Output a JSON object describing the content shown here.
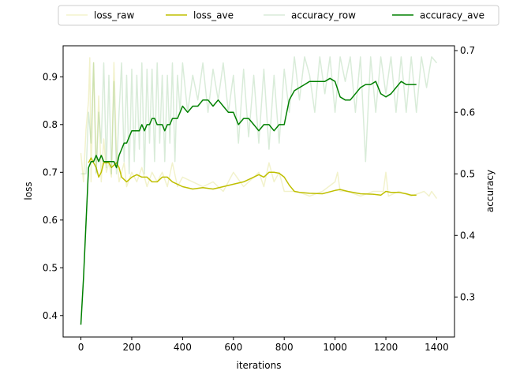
{
  "chart_data": {
    "type": "line",
    "title": "",
    "xlabel": "iterations",
    "ylabel_left": "loss",
    "ylabel_right": "accuracy",
    "xlim": [
      -70,
      1470
    ],
    "ylim_left": [
      0.355,
      0.965
    ],
    "ylim_right": [
      0.235,
      0.708
    ],
    "x_ticks": [
      0,
      200,
      400,
      600,
      800,
      1000,
      1200,
      1400
    ],
    "x_tick_labels": [
      "0",
      "200",
      "400",
      "600",
      "800",
      "1000",
      "1200",
      "1400"
    ],
    "y_left_ticks": [
      0.4,
      0.5,
      0.6,
      0.7,
      0.8,
      0.9
    ],
    "y_left_tick_labels": [
      "0.4",
      "0.5",
      "0.6",
      "0.7",
      "0.8",
      "0.9"
    ],
    "y_right_ticks": [
      0.3,
      0.4,
      0.5,
      0.6,
      0.7
    ],
    "y_right_tick_labels": [
      "0.3",
      "0.4",
      "0.5",
      "0.6",
      "0.7"
    ],
    "grid": false,
    "legend_position": "top-center-outside",
    "legend": [
      "loss_raw",
      "loss_ave",
      "accuracy_row",
      "accuracy_ave"
    ],
    "series": [
      {
        "name": "loss_raw",
        "axis": "left",
        "color": "#bfbf00",
        "opacity": 0.2,
        "x": [
          0,
          10,
          20,
          30,
          35,
          40,
          50,
          60,
          70,
          80,
          90,
          100,
          110,
          120,
          130,
          140,
          150,
          160,
          170,
          180,
          200,
          220,
          240,
          260,
          280,
          300,
          320,
          340,
          360,
          380,
          400,
          440,
          480,
          520,
          560,
          600,
          640,
          680,
          700,
          720,
          740,
          760,
          780,
          800,
          850,
          900,
          950,
          1000,
          1010,
          1020,
          1050,
          1100,
          1150,
          1190,
          1200,
          1210,
          1250,
          1300,
          1350,
          1370,
          1380,
          1400
        ],
        "values": [
          0.74,
          0.68,
          0.79,
          0.85,
          0.94,
          0.68,
          0.93,
          0.7,
          0.86,
          0.68,
          0.77,
          0.7,
          0.72,
          0.69,
          0.93,
          0.74,
          0.68,
          0.7,
          0.72,
          0.67,
          0.7,
          0.68,
          0.71,
          0.67,
          0.7,
          0.68,
          0.7,
          0.67,
          0.72,
          0.67,
          0.69,
          0.68,
          0.67,
          0.68,
          0.66,
          0.7,
          0.67,
          0.69,
          0.7,
          0.67,
          0.72,
          0.68,
          0.7,
          0.66,
          0.66,
          0.65,
          0.66,
          0.68,
          0.7,
          0.66,
          0.66,
          0.65,
          0.66,
          0.66,
          0.7,
          0.65,
          0.66,
          0.65,
          0.66,
          0.65,
          0.66,
          0.645
        ]
      },
      {
        "name": "loss_ave",
        "axis": "left",
        "color": "#bfbf00",
        "opacity": 1,
        "x": [
          30,
          40,
          50,
          60,
          70,
          80,
          90,
          100,
          110,
          120,
          140,
          150,
          160,
          180,
          200,
          220,
          240,
          260,
          280,
          300,
          320,
          340,
          360,
          380,
          400,
          440,
          480,
          520,
          560,
          600,
          640,
          680,
          700,
          720,
          740,
          760,
          780,
          800,
          820,
          840,
          860,
          900,
          950,
          1000,
          1020,
          1050,
          1100,
          1150,
          1180,
          1200,
          1220,
          1250,
          1280,
          1300,
          1320
        ],
        "values": [
          0.72,
          0.73,
          0.72,
          0.71,
          0.69,
          0.7,
          0.72,
          0.72,
          0.72,
          0.71,
          0.72,
          0.71,
          0.69,
          0.68,
          0.69,
          0.695,
          0.69,
          0.69,
          0.68,
          0.68,
          0.69,
          0.69,
          0.68,
          0.675,
          0.67,
          0.665,
          0.668,
          0.665,
          0.67,
          0.675,
          0.68,
          0.69,
          0.695,
          0.69,
          0.7,
          0.7,
          0.698,
          0.69,
          0.673,
          0.66,
          0.658,
          0.656,
          0.655,
          0.662,
          0.664,
          0.66,
          0.655,
          0.654,
          0.652,
          0.66,
          0.658,
          0.658,
          0.655,
          0.652,
          0.652
        ]
      },
      {
        "name": "accuracy_row",
        "axis": "right",
        "color": "#008000",
        "opacity": 0.15,
        "x": [
          0,
          10,
          20,
          30,
          40,
          50,
          60,
          70,
          80,
          90,
          100,
          110,
          120,
          130,
          140,
          150,
          160,
          170,
          180,
          190,
          200,
          210,
          220,
          230,
          240,
          250,
          260,
          270,
          280,
          290,
          300,
          310,
          320,
          330,
          340,
          350,
          360,
          370,
          380,
          390,
          400,
          420,
          440,
          460,
          480,
          500,
          520,
          540,
          560,
          580,
          600,
          620,
          640,
          660,
          680,
          700,
          720,
          740,
          760,
          780,
          800,
          820,
          840,
          860,
          880,
          900,
          920,
          940,
          960,
          980,
          1000,
          1020,
          1040,
          1060,
          1080,
          1100,
          1120,
          1140,
          1160,
          1180,
          1200,
          1220,
          1240,
          1260,
          1280,
          1300,
          1320,
          1340,
          1360,
          1380,
          1400
        ],
        "values": [
          0.5,
          0.5,
          0.5,
          0.6,
          0.55,
          0.68,
          0.5,
          0.6,
          0.55,
          0.68,
          0.51,
          0.66,
          0.5,
          0.65,
          0.5,
          0.6,
          0.68,
          0.52,
          0.66,
          0.5,
          0.67,
          0.52,
          0.66,
          0.54,
          0.68,
          0.5,
          0.67,
          0.55,
          0.67,
          0.52,
          0.68,
          0.55,
          0.66,
          0.52,
          0.66,
          0.55,
          0.68,
          0.52,
          0.66,
          0.6,
          0.68,
          0.6,
          0.66,
          0.62,
          0.68,
          0.6,
          0.67,
          0.62,
          0.68,
          0.6,
          0.66,
          0.55,
          0.67,
          0.56,
          0.66,
          0.55,
          0.67,
          0.54,
          0.66,
          0.55,
          0.67,
          0.6,
          0.69,
          0.62,
          0.69,
          0.66,
          0.6,
          0.69,
          0.63,
          0.69,
          0.6,
          0.69,
          0.65,
          0.69,
          0.6,
          0.69,
          0.52,
          0.69,
          0.6,
          0.69,
          0.63,
          0.69,
          0.6,
          0.69,
          0.6,
          0.69,
          0.6,
          0.69,
          0.64,
          0.69,
          0.68
        ]
      },
      {
        "name": "accuracy_ave",
        "axis": "right",
        "color": "#008000",
        "opacity": 1,
        "x": [
          0,
          10,
          20,
          30,
          40,
          50,
          60,
          70,
          80,
          90,
          100,
          110,
          120,
          130,
          140,
          150,
          160,
          170,
          180,
          190,
          200,
          210,
          220,
          230,
          240,
          250,
          260,
          270,
          280,
          290,
          300,
          310,
          320,
          330,
          340,
          350,
          360,
          370,
          380,
          390,
          400,
          420,
          440,
          460,
          480,
          500,
          520,
          540,
          560,
          580,
          600,
          620,
          640,
          660,
          680,
          700,
          720,
          740,
          760,
          780,
          800,
          820,
          840,
          860,
          880,
          900,
          920,
          940,
          960,
          980,
          1000,
          1020,
          1040,
          1060,
          1080,
          1100,
          1120,
          1140,
          1160,
          1180,
          1200,
          1220,
          1240,
          1260,
          1280,
          1300,
          1320
        ],
        "values": [
          0.255,
          0.33,
          0.42,
          0.51,
          0.52,
          0.52,
          0.53,
          0.52,
          0.53,
          0.52,
          0.52,
          0.52,
          0.52,
          0.52,
          0.51,
          0.53,
          0.54,
          0.55,
          0.55,
          0.56,
          0.57,
          0.57,
          0.57,
          0.57,
          0.58,
          0.57,
          0.58,
          0.58,
          0.59,
          0.59,
          0.58,
          0.58,
          0.58,
          0.57,
          0.58,
          0.58,
          0.59,
          0.59,
          0.59,
          0.6,
          0.61,
          0.6,
          0.61,
          0.61,
          0.62,
          0.62,
          0.61,
          0.62,
          0.61,
          0.6,
          0.6,
          0.58,
          0.59,
          0.59,
          0.58,
          0.57,
          0.58,
          0.58,
          0.57,
          0.58,
          0.58,
          0.62,
          0.635,
          0.64,
          0.645,
          0.65,
          0.65,
          0.65,
          0.65,
          0.655,
          0.65,
          0.625,
          0.62,
          0.62,
          0.63,
          0.64,
          0.645,
          0.645,
          0.65,
          0.63,
          0.625,
          0.63,
          0.64,
          0.65,
          0.645,
          0.645,
          0.645
        ]
      }
    ]
  }
}
